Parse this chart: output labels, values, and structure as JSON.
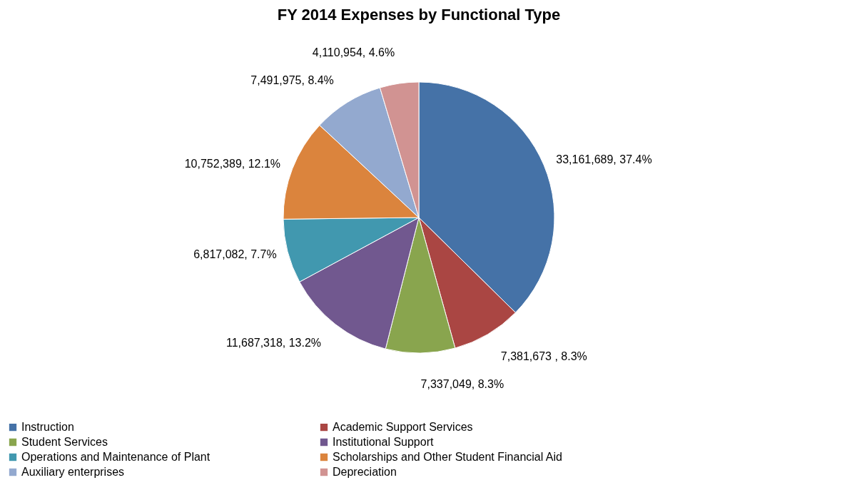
{
  "chart_data": {
    "type": "pie",
    "title": "FY 2014 Expenses by Functional Type",
    "categories": [
      "Instruction",
      "Academic Support Services",
      "Student Services",
      "Institutional Support",
      "Operations and Maintenance of Plant",
      "Scholarships and Other Student Financial Aid",
      "Auxiliary enterprises",
      "Depreciation"
    ],
    "values": [
      33161689,
      7381673,
      7337049,
      11687318,
      6817082,
      10752389,
      7491975,
      4110954
    ],
    "colors": [
      "#4572a7",
      "#aa4643",
      "#89a54e",
      "#71588f",
      "#4198af",
      "#db843d",
      "#93a9cf",
      "#d19392"
    ],
    "value_labels": [
      "33,161,689, 37.4%",
      "7,381,673 , 8.3%",
      "7,337,049, 8.3%",
      "11,687,318, 13.2%",
      "6,817,082, 7.7%",
      "10,752,389, 12.1%",
      "7,491,975, 8.4%",
      "4,110,954, 4.6%"
    ],
    "legend": "bottom"
  }
}
